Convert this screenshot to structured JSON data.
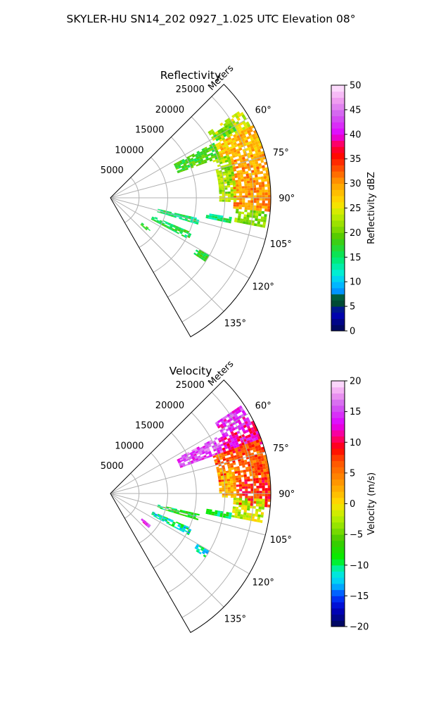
{
  "figure_title": "SKYLER-HU  SN14_202  0927_1.025 UTC Elevation 08°",
  "colors": {
    "ring_grid": "#b0b0b0",
    "sector_edge": "#000000",
    "background": "#ffffff"
  },
  "chart_data": [
    {
      "type": "polar-sector",
      "title": "Reflectivity",
      "range_label": "Meters",
      "range_ticks": [
        5000,
        10000,
        15000,
        20000,
        25000
      ],
      "range_tick_labels": [
        "5000",
        "10000",
        "15000",
        "20000",
        "25000"
      ],
      "range_max": 28000,
      "azimuth_min_deg": 45,
      "azimuth_max_deg": 150,
      "azimuth_ticks_deg": [
        60,
        75,
        90,
        105,
        120,
        135
      ],
      "azimuth_tick_labels": [
        "60°",
        "75°",
        "90°",
        "105°",
        "120°",
        "135°"
      ],
      "grid": true,
      "colorbar": {
        "label": "Reflectivity dBZ",
        "min": 0,
        "max": 50,
        "ticks": [
          0,
          5,
          10,
          15,
          20,
          25,
          30,
          35,
          40,
          45,
          50
        ],
        "tick_labels": [
          "0",
          "5",
          "10",
          "15",
          "20",
          "25",
          "30",
          "35",
          "40",
          "45",
          "50"
        ],
        "stops": [
          [
            0,
            "#000a50"
          ],
          [
            4,
            "#0000c8"
          ],
          [
            5,
            "#004030"
          ],
          [
            7,
            "#006040"
          ],
          [
            8,
            "#0090ff"
          ],
          [
            10,
            "#00c8ff"
          ],
          [
            12,
            "#00f0d0"
          ],
          [
            15,
            "#00e864"
          ],
          [
            19,
            "#4cc800"
          ],
          [
            21,
            "#88dc00"
          ],
          [
            24,
            "#ccee00"
          ],
          [
            26,
            "#ffe000"
          ],
          [
            30,
            "#ffa000"
          ],
          [
            33,
            "#ff5000"
          ],
          [
            36,
            "#ff0000"
          ],
          [
            38,
            "#ff0060"
          ],
          [
            40,
            "#e000ff"
          ],
          [
            44,
            "#d060f0"
          ],
          [
            47,
            "#f0a0f0"
          ],
          [
            50,
            "#ffe8ff"
          ]
        ]
      },
      "echo_regions": [
        {
          "az": [
            56,
            63
          ],
          "range": [
            20500,
            27500
          ],
          "value": 24
        },
        {
          "az": [
            63,
            73
          ],
          "range": [
            20500,
            28000
          ],
          "value": 28
        },
        {
          "az": [
            73,
            95
          ],
          "range": [
            21500,
            28000
          ],
          "value": 30
        },
        {
          "az": [
            95,
            101
          ],
          "range": [
            22000,
            27500
          ],
          "value": 21
        },
        {
          "az": [
            70,
            92
          ],
          "range": [
            19000,
            22000
          ],
          "value": 22
        },
        {
          "az": [
            62,
            70
          ],
          "range": [
            12500,
            20500
          ],
          "value": 18
        },
        {
          "az": [
            58,
            62
          ],
          "range": [
            21000,
            25000
          ],
          "value": 19
        },
        {
          "az": [
            99,
            102
          ],
          "range": [
            17000,
            21500
          ],
          "value": 15
        },
        {
          "az": [
            103,
            107
          ],
          "range": [
            8500,
            16000
          ],
          "value": 15
        },
        {
          "az": [
            113,
            118
          ],
          "range": [
            8000,
            15500
          ],
          "value": 16
        },
        {
          "az": [
            128,
            132
          ],
          "range": [
            7000,
            9000
          ],
          "value": 18
        },
        {
          "az": [
            120,
            124
          ],
          "range": [
            17500,
            20000
          ],
          "value": 17
        }
      ]
    },
    {
      "type": "polar-sector",
      "title": "Velocity",
      "range_label": "Meters",
      "range_ticks": [
        5000,
        10000,
        15000,
        20000,
        25000
      ],
      "range_tick_labels": [
        "5000",
        "10000",
        "15000",
        "20000",
        "25000"
      ],
      "range_max": 28000,
      "azimuth_min_deg": 45,
      "azimuth_max_deg": 150,
      "azimuth_ticks_deg": [
        60,
        75,
        90,
        105,
        120,
        135
      ],
      "azimuth_tick_labels": [
        "60°",
        "75°",
        "90°",
        "105°",
        "120°",
        "135°"
      ],
      "grid": true,
      "colorbar": {
        "label": "Velocity (m/s)",
        "min": -20,
        "max": 20,
        "ticks": [
          -20,
          -15,
          -10,
          -5,
          0,
          5,
          10,
          15,
          20
        ],
        "tick_labels": [
          "−20",
          "−15",
          "−10",
          "−5",
          "0",
          "5",
          "10",
          "15",
          "20"
        ],
        "stops": [
          [
            -20,
            "#000a50"
          ],
          [
            -17,
            "#0000c8"
          ],
          [
            -15,
            "#0040ff"
          ],
          [
            -13,
            "#00c8ff"
          ],
          [
            -11,
            "#00f0d0"
          ],
          [
            -9,
            "#00f000"
          ],
          [
            -6,
            "#40c800"
          ],
          [
            -4,
            "#88e000"
          ],
          [
            -2,
            "#c0f000"
          ],
          [
            0,
            "#ffe000"
          ],
          [
            3,
            "#ffa000"
          ],
          [
            7,
            "#ff5000"
          ],
          [
            9,
            "#ff0000"
          ],
          [
            11,
            "#ff0080"
          ],
          [
            13,
            "#e000ff"
          ],
          [
            16,
            "#d060f0"
          ],
          [
            18,
            "#f0a0f0"
          ],
          [
            20,
            "#ffe8ff"
          ]
        ]
      },
      "echo_regions": [
        {
          "az": [
            56,
            63
          ],
          "range": [
            22000,
            27500
          ],
          "value": 14
        },
        {
          "az": [
            63,
            72
          ],
          "range": [
            21000,
            28000
          ],
          "value": 12
        },
        {
          "az": [
            62,
            70
          ],
          "range": [
            13000,
            21000
          ],
          "value": 15
        },
        {
          "az": [
            70,
            84
          ],
          "range": [
            19000,
            28000
          ],
          "value": 6
        },
        {
          "az": [
            84,
            95
          ],
          "range": [
            22000,
            28000
          ],
          "value": 8
        },
        {
          "az": [
            78,
            92
          ],
          "range": [
            19000,
            22000
          ],
          "value": 2
        },
        {
          "az": [
            92,
            101
          ],
          "range": [
            21500,
            27000
          ],
          "value": -2
        },
        {
          "az": [
            99,
            102
          ],
          "range": [
            17000,
            21500
          ],
          "value": -9
        },
        {
          "az": [
            103,
            107
          ],
          "range": [
            8500,
            16000
          ],
          "value": -8
        },
        {
          "az": [
            113,
            118
          ],
          "range": [
            8000,
            15500
          ],
          "value": -11
        },
        {
          "az": [
            128,
            132
          ],
          "range": [
            7000,
            9000
          ],
          "value": 14
        },
        {
          "az": [
            120,
            124
          ],
          "range": [
            17500,
            20000
          ],
          "value": -12
        }
      ]
    }
  ]
}
